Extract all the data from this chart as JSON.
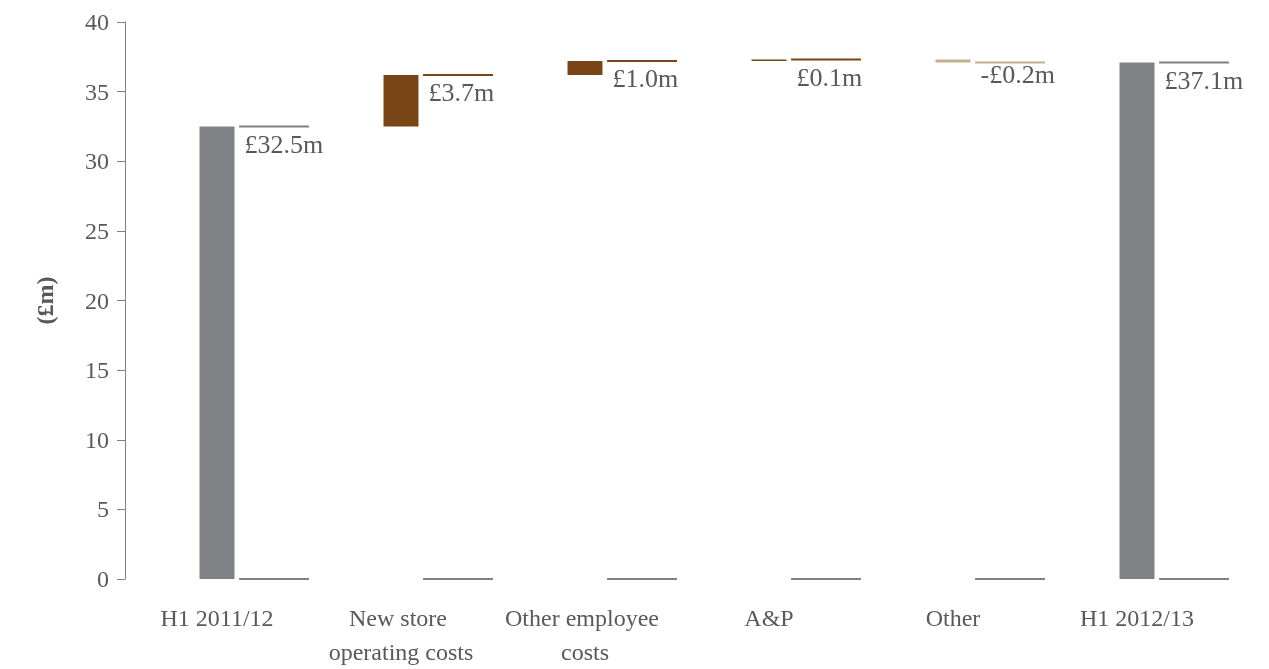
{
  "chart_data": {
    "type": "bar",
    "ylabel": "(£m)",
    "categories": [
      "H1 2011/12",
      "New store operating costs",
      "Other employee costs",
      "A&P",
      "Other",
      "H1 2012/13"
    ],
    "values": [
      32.5,
      3.7,
      1.0,
      0.1,
      -0.2,
      37.1
    ],
    "base": [
      0,
      32.5,
      36.2,
      37.2,
      37.3,
      0
    ],
    "colors": [
      "#808184",
      "#7a4516",
      "#7a4516",
      "#7a4516",
      "#c4b08f",
      "#808184"
    ],
    "value_labels": [
      "£32.5m",
      "£3.7m",
      "£1.0m",
      "£0.1m",
      "-£0.2m",
      "£37.1m"
    ],
    "ylim": [
      0,
      40
    ],
    "yticks": [
      0,
      5,
      10,
      15,
      20,
      25,
      30,
      35,
      40
    ],
    "grid": false
  }
}
